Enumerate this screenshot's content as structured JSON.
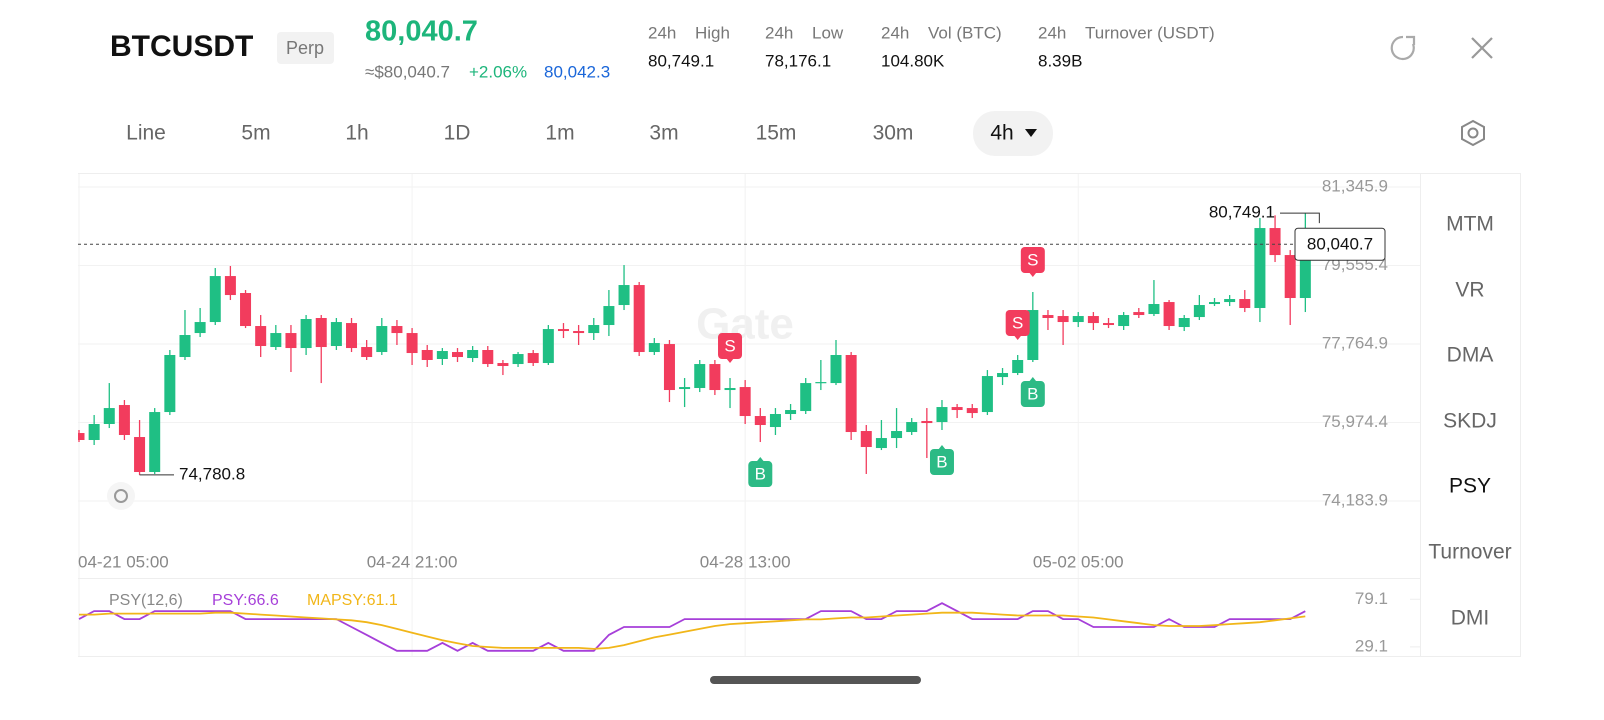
{
  "header": {
    "symbol": "BTCUSDT",
    "badge": "Perp",
    "price": "80,040.7",
    "approx": "≈$80,040.7",
    "change": "+2.06%",
    "mark_price": "80,042.3",
    "stats": [
      {
        "period": "24h",
        "label": "High",
        "value": "80,749.1"
      },
      {
        "period": "24h",
        "label": "Low",
        "value": "78,176.1"
      },
      {
        "period": "24h",
        "label": "Vol (BTC)",
        "value": "104.80K"
      },
      {
        "period": "24h",
        "label": "Turnover (USDT)",
        "value": "8.39B"
      }
    ]
  },
  "tabs": [
    "Line",
    "5m",
    "1h",
    "1D",
    "1m",
    "3m",
    "15m",
    "30m",
    "4h"
  ],
  "active_tab": 8,
  "indicators": [
    "MTM",
    "VR",
    "DMA",
    "SKDJ",
    "PSY",
    "Turnover",
    "DMI"
  ],
  "active_indicator": 4,
  "watermark": "Gate",
  "chart_data": [
    {
      "type": "candlestick",
      "up_color": "#1fbf84",
      "down_color": "#f23c5d",
      "categories": [
        "04-21 05:00",
        null,
        null,
        null,
        null,
        null,
        null,
        null,
        null,
        null,
        null,
        null,
        null,
        null,
        null,
        null,
        null,
        null,
        null,
        null,
        null,
        null,
        "04-24 21:00",
        null,
        null,
        null,
        null,
        null,
        null,
        null,
        null,
        null,
        null,
        null,
        null,
        null,
        null,
        null,
        null,
        null,
        null,
        null,
        null,
        null,
        "04-28 13:00",
        null,
        null,
        null,
        null,
        null,
        null,
        null,
        null,
        null,
        null,
        null,
        null,
        null,
        null,
        null,
        null,
        null,
        null,
        null,
        null,
        null,
        "05-02 05:00",
        null,
        null,
        null,
        null,
        null,
        null,
        null,
        null,
        null,
        null,
        null,
        null,
        null,
        null,
        null
      ],
      "open": [
        75734,
        75575,
        75940,
        76373,
        75643,
        74845,
        76213,
        77468,
        78015,
        78266,
        79315,
        78928,
        78175,
        77696,
        78015,
        77673,
        78358,
        77719,
        78243,
        77696,
        77582,
        78175,
        78015,
        77628,
        77423,
        77582,
        77445,
        77628,
        77331,
        77308,
        77559,
        77331,
        78106,
        78061,
        78015,
        78198,
        78654,
        79110,
        77582,
        77764,
        76738,
        76761,
        77308,
        76715,
        76783,
        76122,
        75871,
        76168,
        76236,
        76874,
        76874,
        77514,
        75780,
        75392,
        75620,
        75757,
        76008,
        75985,
        76327,
        76304,
        76213,
        77011,
        77103,
        77400,
        78426,
        78403,
        78266,
        78403,
        78243,
        78175,
        78494,
        78449,
        78722,
        78152,
        78380,
        78677,
        78722,
        78791,
        78586,
        80410,
        79794,
        78814
      ],
      "high": [
        75803,
        76145,
        76874,
        76487,
        76031,
        76304,
        77628,
        78540,
        78586,
        79498,
        79544,
        78996,
        78426,
        78198,
        78198,
        78426,
        78426,
        78358,
        78358,
        77856,
        78358,
        78312,
        78129,
        77742,
        77673,
        77673,
        77719,
        77719,
        77400,
        77582,
        77628,
        78198,
        78243,
        78198,
        78358,
        78996,
        79566,
        79179,
        77901,
        77856,
        76989,
        77400,
        77400,
        76989,
        76943,
        76304,
        76304,
        76396,
        76989,
        77400,
        77856,
        77582,
        75917,
        76031,
        76304,
        76076,
        76304,
        76487,
        76396,
        76396,
        77171,
        77217,
        77514,
        78951,
        78540,
        78540,
        78494,
        78494,
        78358,
        78494,
        78586,
        79224,
        78768,
        78426,
        78882,
        78814,
        78882,
        78996,
        80638,
        80700,
        79908,
        80749.1
      ],
      "low": [
        75529,
        75461,
        75848,
        75575,
        74780.8,
        74799,
        76145,
        77400,
        77924,
        78198,
        78768,
        78129,
        77468,
        77628,
        77126,
        77514,
        76874,
        77628,
        77582,
        77400,
        77514,
        77742,
        77286,
        77240,
        77286,
        77354,
        77354,
        77240,
        77057,
        77240,
        77263,
        77286,
        77901,
        77742,
        77856,
        77947,
        78540,
        77491,
        77514,
        76441,
        76327,
        76669,
        76601,
        76304,
        75940,
        75529,
        75689,
        76031,
        76168,
        76715,
        76829,
        75575,
        74800,
        75346,
        75392,
        75689,
        75164,
        75803,
        76076,
        76076,
        76145,
        76829,
        77057,
        77354,
        78084,
        77742,
        78152,
        78084,
        78129,
        78084,
        78358,
        78403,
        78084,
        78061,
        78312,
        78631,
        78631,
        78494,
        78266,
        79635,
        78198,
        78494
      ],
      "close": [
        75575,
        75940,
        76304,
        75689,
        74845,
        76213,
        77514,
        77970,
        78266,
        79315,
        78882,
        78175,
        77719,
        78015,
        77673,
        78335,
        77696,
        78266,
        77673,
        77468,
        78175,
        78015,
        77559,
        77400,
        77605,
        77468,
        77628,
        77308,
        77263,
        77536,
        77331,
        78106,
        78061,
        78015,
        78198,
        78631,
        79110,
        77582,
        77787,
        76715,
        76783,
        77308,
        76715,
        76761,
        76122,
        75917,
        76168,
        76259,
        76874,
        76897,
        77514,
        75757,
        75415,
        75620,
        75780,
        75985,
        75962,
        76327,
        76259,
        76190,
        77034,
        77103,
        77400,
        78540,
        78358,
        78266,
        78403,
        78243,
        78198,
        78426,
        78426,
        78677,
        78175,
        78358,
        78654,
        78722,
        78791,
        78586,
        80410,
        79794,
        78814,
        80040.7
      ],
      "ylim": [
        73180,
        81620
      ],
      "yticks": [
        {
          "value": 81345.9,
          "label": "81,345.9"
        },
        {
          "value": 79555.4,
          "label": "79,555.4"
        },
        {
          "value": 77764.9,
          "label": "77,764.9"
        },
        {
          "value": 75974.4,
          "label": "75,974.4"
        },
        {
          "value": 74183.9,
          "label": "74,183.9"
        }
      ],
      "grid": true,
      "high_label": {
        "value": 80749.1,
        "label": "80,749.1"
      },
      "low_label": {
        "value": 74780.8,
        "label": "74,780.8"
      },
      "last_price": {
        "value": 80040.7,
        "label": "80,040.7"
      },
      "signals": [
        {
          "index": 43,
          "label": "S",
          "position": "above",
          "color": "#f23c5d"
        },
        {
          "index": 62,
          "label": "S",
          "position": "above",
          "color": "#f23c5d"
        },
        {
          "index": 63,
          "label": "S",
          "position": "above",
          "color": "#f23c5d"
        },
        {
          "index": 45,
          "label": "B",
          "position": "below",
          "color": "#2cba85"
        },
        {
          "index": 57,
          "label": "B",
          "position": "below",
          "color": "#2cba85"
        },
        {
          "index": 63,
          "label": "B",
          "position": "below",
          "color": "#2cba85"
        }
      ]
    },
    {
      "type": "line",
      "title": "PSY(12,6)",
      "ylim": [
        19.5,
        100.4
      ],
      "yticks": [
        79.1,
        29.1
      ],
      "series": [
        {
          "name": "PSY:66.6",
          "color": "#a63fd9",
          "values": [
            58.3,
            66.7,
            66.7,
            58.3,
            58.3,
            66.7,
            66.7,
            66.7,
            66.7,
            66.7,
            66.7,
            58.3,
            58.3,
            58.3,
            58.3,
            58.3,
            58.3,
            58.3,
            50,
            41.7,
            33.3,
            25,
            25,
            25,
            33.3,
            25,
            33.3,
            25,
            25,
            25,
            25,
            33.3,
            25,
            25,
            25,
            41.7,
            50,
            50,
            50,
            50,
            58.3,
            58.3,
            58.3,
            58.3,
            58.3,
            58.3,
            58.3,
            58.3,
            58.3,
            66.7,
            66.7,
            66.7,
            58.3,
            58.3,
            66.7,
            66.7,
            66.7,
            75,
            66.7,
            58.3,
            58.3,
            58.3,
            58.3,
            66.7,
            66.7,
            58.3,
            58.3,
            50,
            50,
            50,
            50,
            50,
            58.3,
            50,
            50,
            50,
            58.3,
            58.3,
            58.3,
            58.3,
            58.3,
            66.6
          ]
        },
        {
          "name": "MAPSY:61.1",
          "color": "#f1b619",
          "values": [
            63,
            63,
            64,
            64,
            64,
            64,
            64,
            64,
            64,
            65,
            65,
            64,
            63,
            62,
            61,
            60,
            59,
            58,
            57,
            55,
            52,
            48,
            44,
            40,
            36,
            33,
            30,
            29,
            28,
            28,
            28,
            28,
            28,
            28,
            27,
            28,
            31,
            35,
            39,
            42,
            45,
            48,
            51,
            53,
            54,
            55,
            56,
            57,
            58,
            58,
            59,
            60,
            60,
            61,
            62,
            63,
            64,
            65,
            65,
            65,
            64,
            63,
            62,
            62,
            62,
            62,
            61,
            60,
            58,
            56,
            54,
            52,
            51,
            51,
            51,
            52,
            53,
            54,
            55,
            57,
            59,
            61.1
          ]
        }
      ]
    }
  ]
}
